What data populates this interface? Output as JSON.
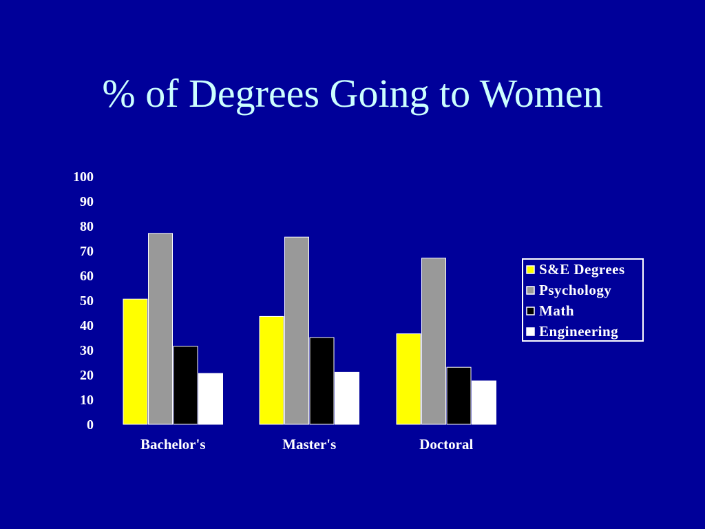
{
  "title": "% of Degrees Going to Women",
  "colors": {
    "background": "#000099",
    "title": "#ccffff",
    "text": "#ffffff"
  },
  "chart_data": {
    "type": "bar",
    "title": "",
    "xlabel": "",
    "ylabel": "",
    "ylim": [
      0,
      100
    ],
    "yticks": [
      "0",
      "10",
      "20",
      "30",
      "40",
      "50",
      "60",
      "70",
      "80",
      "90",
      "100"
    ],
    "grid": false,
    "legend_position": "right",
    "categories": [
      "Bachelor's",
      "Master's",
      "Doctoral"
    ],
    "series": [
      {
        "name": "S&E Degrees",
        "color": "#ffff00",
        "values": [
          50.5,
          43.5,
          36.5
        ]
      },
      {
        "name": "Psychology",
        "color": "#999999",
        "values": [
          77,
          75.5,
          67
        ]
      },
      {
        "name": "Math",
        "color": "#000000",
        "values": [
          31.5,
          35,
          23
        ]
      },
      {
        "name": "Engineering",
        "color": "#ffffff",
        "values": [
          20.5,
          21,
          17.5
        ]
      }
    ]
  }
}
